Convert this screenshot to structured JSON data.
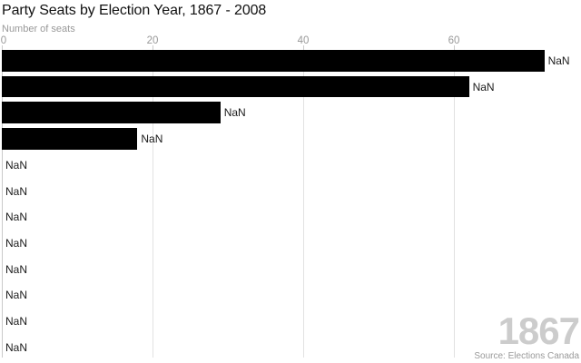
{
  "header": {
    "title": "Party Seats by Election Year, 1867 - 2008",
    "axis_label": "Number of seats"
  },
  "footer": {
    "year": "1867",
    "source": "Source: Elections Canada"
  },
  "colors": {
    "bar": "#000000",
    "gridline": "#e2e2e2",
    "axis_line": "#c9c9c9",
    "tick_mark": "#cccccc",
    "muted_text": "#999999",
    "title_text": "#111111",
    "bar_label_text": "#1a1a1a",
    "watermark_text": "#cccccc",
    "background": "#ffffff"
  },
  "chart_data": {
    "type": "bar",
    "orientation": "horizontal",
    "title": "Party Seats by Election Year, 1867 - 2008",
    "xlabel": "Number of seats",
    "x_ticks": [
      0,
      20,
      40,
      60
    ],
    "xlim": [
      0,
      77
    ],
    "grid": true,
    "legend": false,
    "current_frame_year": "1867",
    "source": "Source: Elections Canada",
    "bars": [
      {
        "value": 72,
        "displayed_label": "NaN"
      },
      {
        "value": 62,
        "displayed_label": "NaN"
      },
      {
        "value": 29,
        "displayed_label": "NaN"
      },
      {
        "value": 18,
        "displayed_label": "NaN"
      },
      {
        "value": 0,
        "displayed_label": "NaN"
      },
      {
        "value": 0,
        "displayed_label": "NaN"
      },
      {
        "value": 0,
        "displayed_label": "NaN"
      },
      {
        "value": 0,
        "displayed_label": "NaN"
      },
      {
        "value": 0,
        "displayed_label": "NaN"
      },
      {
        "value": 0,
        "displayed_label": "NaN"
      },
      {
        "value": 0,
        "displayed_label": "NaN"
      },
      {
        "value": 0,
        "displayed_label": "NaN"
      }
    ]
  }
}
